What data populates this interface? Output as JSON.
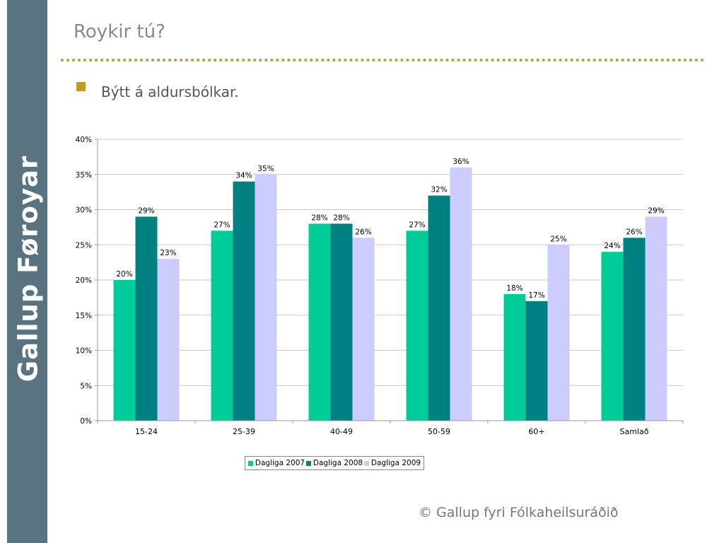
{
  "slide": {
    "title": "Roykir tú?",
    "subtitle": "Býtt á aldursbólkar.",
    "brand": "Gallup Føroyar",
    "footer": "© Gallup fyri Fólkaheilsuráðið"
  },
  "colors": {
    "sidebar": "#5a7381",
    "bullet": "#c29a2a",
    "dots": "#b5a037"
  },
  "chart_data": {
    "type": "bar",
    "categories": [
      "15-24",
      "25-39",
      "40-49",
      "50-59",
      "60+",
      "Samlað"
    ],
    "series": [
      {
        "name": "Dagliga 2007",
        "color": "#00cc99",
        "values": [
          20,
          27,
          28,
          27,
          18,
          24
        ],
        "labels": [
          "20%",
          "27%",
          "28%",
          "27%",
          "18%",
          "24%"
        ]
      },
      {
        "name": "Dagliga 2008",
        "color": "#008080",
        "values": [
          29,
          34,
          28,
          32,
          17,
          26
        ],
        "labels": [
          "29%",
          "34%",
          "28%",
          "32%",
          "17%",
          "26%"
        ]
      },
      {
        "name": "Dagliga 2009",
        "color": "#ccccff",
        "values": [
          23,
          35,
          26,
          36,
          25,
          29
        ],
        "labels": [
          "23%",
          "35%",
          "26%",
          "36%",
          "25%",
          "29%"
        ]
      }
    ],
    "yticks": [
      "0%",
      "5%",
      "10%",
      "15%",
      "20%",
      "25%",
      "30%",
      "35%",
      "40%"
    ],
    "ylim": [
      0,
      40
    ],
    "grid": true,
    "legend": "bottom"
  }
}
